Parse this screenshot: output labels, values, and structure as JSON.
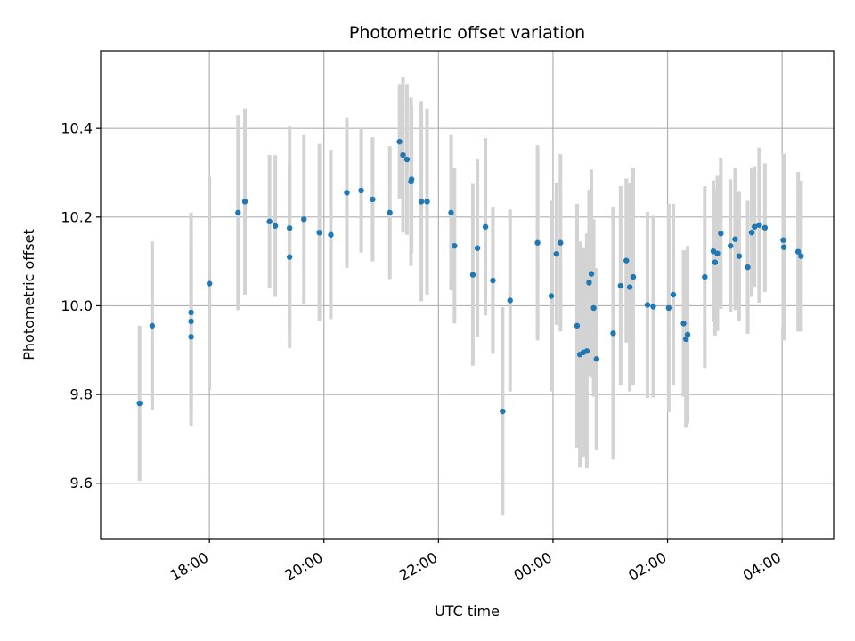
{
  "chart_data": {
    "type": "scatter",
    "title": "Photometric offset variation",
    "xlabel": "UTC time",
    "ylabel": "Photometric offset",
    "x_unit": "UTC time, hours after 00:00 on the first night (negative = before midnight)",
    "xlim": [
      -7.9,
      4.9
    ],
    "ylim": [
      9.475,
      10.575
    ],
    "grid": true,
    "x_ticks": [
      {
        "value": -6,
        "label": "18:00"
      },
      {
        "value": -4,
        "label": "20:00"
      },
      {
        "value": -2,
        "label": "22:00"
      },
      {
        "value": 0,
        "label": "00:00"
      },
      {
        "value": 2,
        "label": "02:00"
      },
      {
        "value": 4,
        "label": "04:00"
      }
    ],
    "y_ticks": [
      {
        "value": 9.6,
        "label": "9.6"
      },
      {
        "value": 9.8,
        "label": "9.8"
      },
      {
        "value": 10.0,
        "label": "10.0"
      },
      {
        "value": 10.2,
        "label": "10.2"
      },
      {
        "value": 10.4,
        "label": "10.4"
      }
    ],
    "colors": {
      "point": "#1f77b4",
      "errorbar": "#d3d3d3",
      "grid": "#b0b0b0"
    },
    "series": [
      {
        "points": [
          {
            "x": -7.22,
            "y": 9.78,
            "err": 0.175
          },
          {
            "x": -7.0,
            "y": 9.955,
            "err": 0.19
          },
          {
            "x": -6.32,
            "y": 9.93,
            "err": 0.2
          },
          {
            "x": -6.32,
            "y": 9.965,
            "err": 0.2
          },
          {
            "x": -6.32,
            "y": 9.985,
            "err": 0.225
          },
          {
            "x": -6.0,
            "y": 10.05,
            "err": 0.24
          },
          {
            "x": -5.5,
            "y": 10.21,
            "err": 0.22
          },
          {
            "x": -5.38,
            "y": 10.235,
            "err": 0.21
          },
          {
            "x": -4.95,
            "y": 10.19,
            "err": 0.15
          },
          {
            "x": -4.85,
            "y": 10.18,
            "err": 0.16
          },
          {
            "x": -4.6,
            "y": 10.11,
            "err": 0.205
          },
          {
            "x": -4.6,
            "y": 10.175,
            "err": 0.23
          },
          {
            "x": -4.35,
            "y": 10.195,
            "err": 0.19
          },
          {
            "x": -4.08,
            "y": 10.165,
            "err": 0.2
          },
          {
            "x": -3.88,
            "y": 10.16,
            "err": 0.19
          },
          {
            "x": -3.6,
            "y": 10.255,
            "err": 0.17
          },
          {
            "x": -3.35,
            "y": 10.26,
            "err": 0.14
          },
          {
            "x": -3.15,
            "y": 10.24,
            "err": 0.14
          },
          {
            "x": -2.85,
            "y": 10.21,
            "err": 0.15
          },
          {
            "x": -2.68,
            "y": 10.37,
            "err": 0.13
          },
          {
            "x": -2.62,
            "y": 10.34,
            "err": 0.175
          },
          {
            "x": -2.55,
            "y": 10.33,
            "err": 0.17
          },
          {
            "x": -2.48,
            "y": 10.28,
            "err": 0.19
          },
          {
            "x": -2.47,
            "y": 10.285,
            "err": 0.165
          },
          {
            "x": -2.3,
            "y": 10.235,
            "err": 0.225
          },
          {
            "x": -2.2,
            "y": 10.235,
            "err": 0.21
          },
          {
            "x": -1.78,
            "y": 10.21,
            "err": 0.175
          },
          {
            "x": -1.72,
            "y": 10.135,
            "err": 0.175
          },
          {
            "x": -1.4,
            "y": 10.07,
            "err": 0.205
          },
          {
            "x": -1.32,
            "y": 10.13,
            "err": 0.2
          },
          {
            "x": -1.18,
            "y": 10.178,
            "err": 0.2
          },
          {
            "x": -1.05,
            "y": 10.057,
            "err": 0.165
          },
          {
            "x": -0.88,
            "y": 9.762,
            "err": 0.235
          },
          {
            "x": -0.75,
            "y": 10.012,
            "err": 0.205
          },
          {
            "x": -0.27,
            "y": 10.142,
            "err": 0.22
          },
          {
            "x": -0.03,
            "y": 10.022,
            "err": 0.215
          },
          {
            "x": 0.06,
            "y": 10.117,
            "err": 0.16
          },
          {
            "x": 0.13,
            "y": 10.142,
            "err": 0.2
          },
          {
            "x": 0.42,
            "y": 9.955,
            "err": 0.275
          },
          {
            "x": 0.47,
            "y": 9.89,
            "err": 0.255
          },
          {
            "x": 0.53,
            "y": 9.895,
            "err": 0.235
          },
          {
            "x": 0.59,
            "y": 9.898,
            "err": 0.265
          },
          {
            "x": 0.63,
            "y": 10.052,
            "err": 0.21
          },
          {
            "x": 0.67,
            "y": 10.072,
            "err": 0.235
          },
          {
            "x": 0.71,
            "y": 9.995,
            "err": 0.2
          },
          {
            "x": 0.76,
            "y": 9.88,
            "err": 0.205
          },
          {
            "x": 1.05,
            "y": 9.938,
            "err": 0.285
          },
          {
            "x": 1.18,
            "y": 10.045,
            "err": 0.225
          },
          {
            "x": 1.28,
            "y": 10.102,
            "err": 0.185
          },
          {
            "x": 1.34,
            "y": 10.042,
            "err": 0.235
          },
          {
            "x": 1.4,
            "y": 10.065,
            "err": 0.245
          },
          {
            "x": 1.65,
            "y": 10.002,
            "err": 0.21
          },
          {
            "x": 1.75,
            "y": 9.998,
            "err": 0.205
          },
          {
            "x": 2.02,
            "y": 9.995,
            "err": 0.235
          },
          {
            "x": 2.1,
            "y": 10.025,
            "err": 0.205
          },
          {
            "x": 2.28,
            "y": 9.96,
            "err": 0.165
          },
          {
            "x": 2.32,
            "y": 9.925,
            "err": 0.2
          },
          {
            "x": 2.35,
            "y": 9.935,
            "err": 0.2
          },
          {
            "x": 2.65,
            "y": 10.065,
            "err": 0.205
          },
          {
            "x": 2.8,
            "y": 10.123,
            "err": 0.16
          },
          {
            "x": 2.83,
            "y": 10.098,
            "err": 0.165
          },
          {
            "x": 2.87,
            "y": 10.118,
            "err": 0.175
          },
          {
            "x": 2.93,
            "y": 10.163,
            "err": 0.17
          },
          {
            "x": 3.1,
            "y": 10.135,
            "err": 0.15
          },
          {
            "x": 3.18,
            "y": 10.15,
            "err": 0.16
          },
          {
            "x": 3.25,
            "y": 10.112,
            "err": 0.145
          },
          {
            "x": 3.4,
            "y": 10.087,
            "err": 0.15
          },
          {
            "x": 3.47,
            "y": 10.165,
            "err": 0.145
          },
          {
            "x": 3.52,
            "y": 10.178,
            "err": 0.135
          },
          {
            "x": 3.6,
            "y": 10.182,
            "err": 0.175
          },
          {
            "x": 3.7,
            "y": 10.176,
            "err": 0.145
          },
          {
            "x": 4.02,
            "y": 10.148,
            "err": 0.195
          },
          {
            "x": 4.03,
            "y": 10.132,
            "err": 0.21
          },
          {
            "x": 4.28,
            "y": 10.122,
            "err": 0.18
          },
          {
            "x": 4.33,
            "y": 10.112,
            "err": 0.17
          }
        ]
      }
    ]
  }
}
